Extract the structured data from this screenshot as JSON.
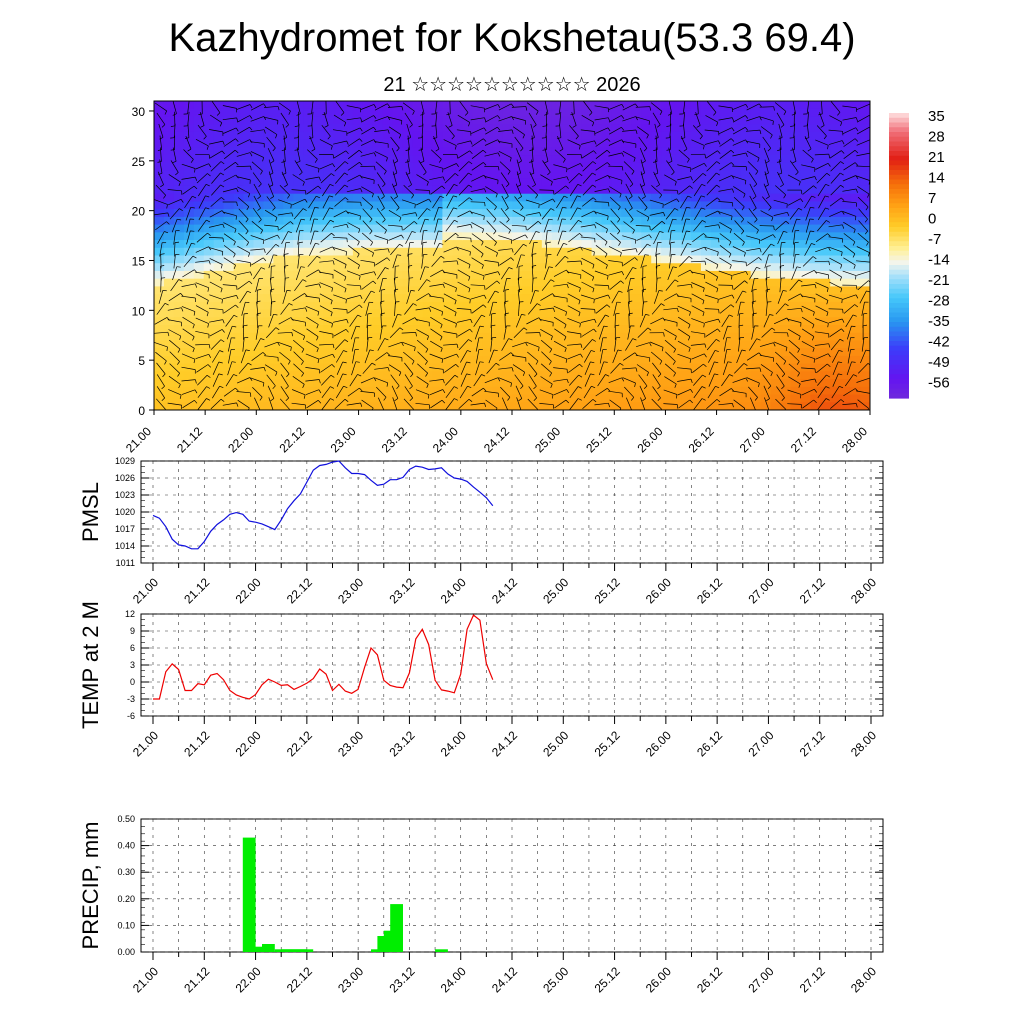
{
  "header": {
    "title": "Kazhydromet for Kokshetau(53.3 69.4)",
    "subtitle": "21 ☆☆☆☆☆☆☆☆☆☆ 2026"
  },
  "time_labels": [
    "21.00",
    "21.12",
    "22.00",
    "22.12",
    "23.00",
    "23.12",
    "24.00",
    "24.12",
    "25.00",
    "25.12",
    "26.00",
    "26.12",
    "27.00",
    "27.12",
    "28.00"
  ],
  "colors": {
    "pmsl_line": "#1010dd",
    "temp_line": "#ee0000",
    "precip_bar": "#00ee00"
  },
  "chart_data": [
    {
      "type": "heatmap",
      "panel": "cross-section",
      "x_categories": [
        "21.00",
        "21.12",
        "22.00",
        "22.12",
        "23.00",
        "23.12",
        "24.00",
        "24.12",
        "25.00",
        "25.12",
        "26.00",
        "26.12",
        "27.00",
        "27.12",
        "28.00"
      ],
      "yticks": [
        0,
        5,
        10,
        15,
        20,
        25,
        30
      ],
      "ylim": [
        0,
        31
      ],
      "colorbar_labels": [
        "35",
        "28",
        "21",
        "14",
        "7",
        "0",
        "-7",
        "-14",
        "-21",
        "-28",
        "-35",
        "-42",
        "-49",
        "-56"
      ],
      "colorbar_range": [
        -63,
        42
      ],
      "overlay": "wind-barbs"
    },
    {
      "type": "line",
      "panel": "pmsl",
      "ylabel": "PMSL",
      "categories": [
        "21.00",
        "21.12",
        "22.00",
        "22.12",
        "23.00",
        "23.12",
        "24.00",
        "24.12",
        "25.00",
        "25.12",
        "26.00",
        "26.12",
        "27.00",
        "27.12",
        "28.00"
      ],
      "ylim": [
        1011,
        1029
      ],
      "yticks": [
        1011,
        1014,
        1017,
        1020,
        1023,
        1026,
        1029
      ],
      "x": [
        0,
        0.25,
        0.5,
        0.75,
        1,
        1.25,
        1.5,
        1.75,
        2,
        2.25,
        2.5,
        2.75,
        3,
        3.25,
        3.5,
        3.75,
        4,
        4.25,
        4.5,
        4.75,
        5,
        5.25,
        5.5,
        5.75,
        6,
        6.25,
        6.5,
        6.75,
        7,
        7.25,
        7.5,
        7.75,
        8,
        8.25,
        8.5,
        8.75,
        9,
        9.25,
        9.5,
        9.75,
        10,
        10.25,
        10.5,
        10.75,
        11,
        11.25,
        11.5,
        11.75,
        12,
        12.25,
        12.5,
        12.75,
        13,
        13.25
      ],
      "values": [
        1019.4,
        1018.9,
        1017.4,
        1015.2,
        1014.2,
        1014.0,
        1013.5,
        1013.5,
        1014.8,
        1016.6,
        1017.8,
        1018.6,
        1019.6,
        1019.9,
        1019.6,
        1018.4,
        1018.2,
        1017.9,
        1017.4,
        1016.9,
        1018.6,
        1020.6,
        1022.0,
        1023.2,
        1025.3,
        1027.4,
        1028.2,
        1028.4,
        1028.8,
        1029.0,
        1027.8,
        1026.8,
        1026.8,
        1026.6,
        1025.6,
        1024.7,
        1024.9,
        1025.7,
        1025.7,
        1026.1,
        1027.5,
        1028.1,
        1027.9,
        1027.5,
        1027.6,
        1027.8,
        1026.7,
        1026.0,
        1025.8,
        1025.4,
        1024.4,
        1023.5,
        1022.5,
        1021.1
      ]
    },
    {
      "type": "line",
      "panel": "temp",
      "ylabel": "TEMP at 2 M",
      "categories": [
        "21.00",
        "21.12",
        "22.00",
        "22.12",
        "23.00",
        "23.12",
        "24.00",
        "24.12",
        "25.00",
        "25.12",
        "26.00",
        "26.12",
        "27.00",
        "27.12",
        "28.00"
      ],
      "ylim": [
        -6,
        12
      ],
      "yticks": [
        -6,
        -3,
        0,
        3,
        6,
        9,
        12
      ],
      "x": [
        0,
        0.25,
        0.5,
        0.75,
        1,
        1.25,
        1.5,
        1.75,
        2,
        2.25,
        2.5,
        2.75,
        3,
        3.25,
        3.5,
        3.75,
        4,
        4.25,
        4.5,
        4.75,
        5,
        5.25,
        5.5,
        5.75,
        6,
        6.25,
        6.5,
        6.75,
        7,
        7.25,
        7.5,
        7.75,
        8,
        8.25,
        8.5,
        8.75,
        9,
        9.25,
        9.5,
        9.75,
        10,
        10.25,
        10.5,
        10.75,
        11,
        11.25,
        11.5,
        11.75,
        12,
        12.25,
        12.5,
        12.75,
        13,
        13.25
      ],
      "values": [
        -3.0,
        -3.0,
        1.8,
        3.2,
        2.2,
        -1.5,
        -1.5,
        -0.3,
        -0.5,
        1.2,
        1.5,
        0.4,
        -1.5,
        -2.3,
        -2.7,
        -3.0,
        -2.2,
        -0.5,
        0.5,
        0.0,
        -0.6,
        -0.5,
        -1.3,
        -0.8,
        -0.2,
        0.6,
        2.3,
        1.4,
        -1.5,
        -0.4,
        -1.6,
        -2.0,
        -1.3,
        2.6,
        6.0,
        4.8,
        0.3,
        -0.6,
        -0.9,
        -1.0,
        1.6,
        7.6,
        9.3,
        6.6,
        0.3,
        -1.4,
        -1.6,
        -1.9,
        1.4,
        9.3,
        11.8,
        10.9,
        3.2,
        0.4
      ]
    },
    {
      "type": "bar",
      "panel": "precip",
      "ylabel": "PRECIP, mm",
      "categories": [
        "21.00",
        "21.12",
        "22.00",
        "22.12",
        "23.00",
        "23.12",
        "24.00",
        "24.12",
        "25.00",
        "25.12",
        "26.00",
        "26.12",
        "27.00",
        "27.12",
        "28.00"
      ],
      "ylim": [
        0,
        0.5
      ],
      "yticks": [
        "0.00",
        "0.10",
        "0.20",
        "0.30",
        "0.40",
        "0.50"
      ],
      "x": [
        3.75,
        4.0,
        4.5,
        5.0,
        5.25,
        5.5,
        5.75,
        6.0,
        8.75,
        9.0,
        9.25,
        9.5,
        9.75,
        11.25
      ],
      "values": [
        0.43,
        0.02,
        0.03,
        0.01,
        0.01,
        0.01,
        0.01,
        0.01,
        0.01,
        0.06,
        0.08,
        0.18,
        0.0,
        0.01
      ]
    }
  ]
}
